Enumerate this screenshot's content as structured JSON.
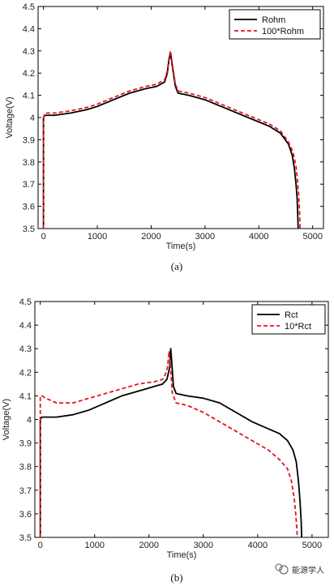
{
  "chart_data": [
    {
      "type": "line",
      "caption": "(a)",
      "xlabel": "Time(s)",
      "ylabel": "Voltage(V)",
      "xlim": [
        -100,
        5200
      ],
      "ylim": [
        3.5,
        4.5
      ],
      "xticks": [
        0,
        1000,
        2000,
        3000,
        4000,
        5000
      ],
      "yticks": [
        3.5,
        3.6,
        3.7,
        3.8,
        3.9,
        4.0,
        4.1,
        4.2,
        4.3,
        4.4,
        4.5
      ],
      "xtick_labels": [
        "0",
        "1000",
        "2000",
        "3000",
        "4000",
        "5000"
      ],
      "ytick_labels": [
        "3.5",
        "3.6",
        "3.7",
        "3.8",
        "3.9",
        "4",
        "4.1",
        "4.2",
        "4.3",
        "4.4",
        "4.5"
      ],
      "legend_position": "top-right",
      "series": [
        {
          "name": "Rohm",
          "color": "#000000",
          "style": "solid",
          "x": [
            0,
            0,
            30,
            60,
            200,
            500,
            800,
            1000,
            1300,
            1600,
            1900,
            2100,
            2250,
            2300,
            2330,
            2360,
            2400,
            2450,
            2500,
            2700,
            3000,
            3300,
            3600,
            3900,
            4200,
            4400,
            4550,
            4620,
            4660,
            4690,
            4710,
            4720,
            4730
          ],
          "y": [
            3.5,
            4.0,
            4.01,
            4.01,
            4.01,
            4.02,
            4.035,
            4.05,
            4.08,
            4.11,
            4.13,
            4.14,
            4.16,
            4.2,
            4.26,
            4.29,
            4.22,
            4.14,
            4.11,
            4.1,
            4.08,
            4.05,
            4.02,
            3.99,
            3.96,
            3.93,
            3.88,
            3.83,
            3.77,
            3.7,
            3.64,
            3.58,
            3.5
          ]
        },
        {
          "name": "100*Rohm",
          "color": "#e8141e",
          "style": "dashed",
          "x": [
            0,
            0,
            30,
            60,
            200,
            500,
            800,
            1000,
            1300,
            1600,
            1900,
            2100,
            2250,
            2300,
            2330,
            2360,
            2400,
            2450,
            2500,
            2700,
            3000,
            3300,
            3600,
            3900,
            4200,
            4400,
            4550,
            4640,
            4690,
            4720,
            4740,
            4755,
            4765
          ],
          "y": [
            3.5,
            4.0,
            4.02,
            4.02,
            4.02,
            4.03,
            4.045,
            4.06,
            4.09,
            4.12,
            4.14,
            4.15,
            4.17,
            4.21,
            4.27,
            4.3,
            4.23,
            4.15,
            4.12,
            4.11,
            4.09,
            4.06,
            4.03,
            4.0,
            3.97,
            3.94,
            3.89,
            3.84,
            3.78,
            3.71,
            3.65,
            3.58,
            3.5
          ]
        }
      ]
    },
    {
      "type": "line",
      "caption": "(b)",
      "xlabel": "Time(s)",
      "ylabel": "Voltage(V)",
      "xlim": [
        -100,
        5300
      ],
      "ylim": [
        3.5,
        4.5
      ],
      "xticks": [
        0,
        1000,
        2000,
        3000,
        4000,
        5000
      ],
      "yticks": [
        3.5,
        3.6,
        3.7,
        3.8,
        3.9,
        4.0,
        4.1,
        4.2,
        4.3,
        4.4,
        4.5
      ],
      "xtick_labels": [
        "0",
        "1000",
        "2000",
        "3000",
        "4000",
        "5000"
      ],
      "ytick_labels": [
        "3.5",
        "3.6",
        "3.7",
        "3.8",
        "3.9",
        "4",
        "4.1",
        "4.2",
        "4.3",
        "4.4",
        "4.5"
      ],
      "legend_position": "top-right",
      "series": [
        {
          "name": "Rct",
          "color": "#000000",
          "style": "solid",
          "x": [
            0,
            0,
            30,
            100,
            300,
            600,
            900,
            1200,
            1500,
            1800,
            2100,
            2250,
            2330,
            2380,
            2400,
            2420,
            2450,
            2500,
            2700,
            3000,
            3300,
            3600,
            3900,
            4200,
            4400,
            4550,
            4650,
            4710,
            4750,
            4780,
            4800,
            4810
          ],
          "y": [
            3.5,
            4.0,
            4.01,
            4.01,
            4.01,
            4.02,
            4.04,
            4.07,
            4.1,
            4.12,
            4.14,
            4.15,
            4.17,
            4.22,
            4.3,
            4.24,
            4.14,
            4.11,
            4.1,
            4.09,
            4.07,
            4.03,
            3.99,
            3.96,
            3.94,
            3.91,
            3.87,
            3.82,
            3.74,
            3.65,
            3.57,
            3.5
          ]
        },
        {
          "name": "10*Rct",
          "color": "#e8141e",
          "style": "dashed",
          "x": [
            0,
            0,
            30,
            100,
            300,
            600,
            900,
            1200,
            1500,
            1800,
            2100,
            2250,
            2300,
            2340,
            2370,
            2400,
            2430,
            2500,
            2700,
            3000,
            3300,
            3600,
            3900,
            4200,
            4400,
            4550,
            4620,
            4670,
            4700,
            4720,
            4730
          ],
          "y": [
            3.5,
            4.1,
            4.1,
            4.09,
            4.07,
            4.07,
            4.09,
            4.11,
            4.13,
            4.15,
            4.16,
            4.17,
            4.19,
            4.22,
            4.29,
            4.21,
            4.11,
            4.07,
            4.06,
            4.03,
            3.99,
            3.95,
            3.91,
            3.87,
            3.83,
            3.79,
            3.74,
            3.67,
            3.6,
            3.54,
            3.5
          ]
        }
      ]
    }
  ],
  "watermark": "能源学人"
}
